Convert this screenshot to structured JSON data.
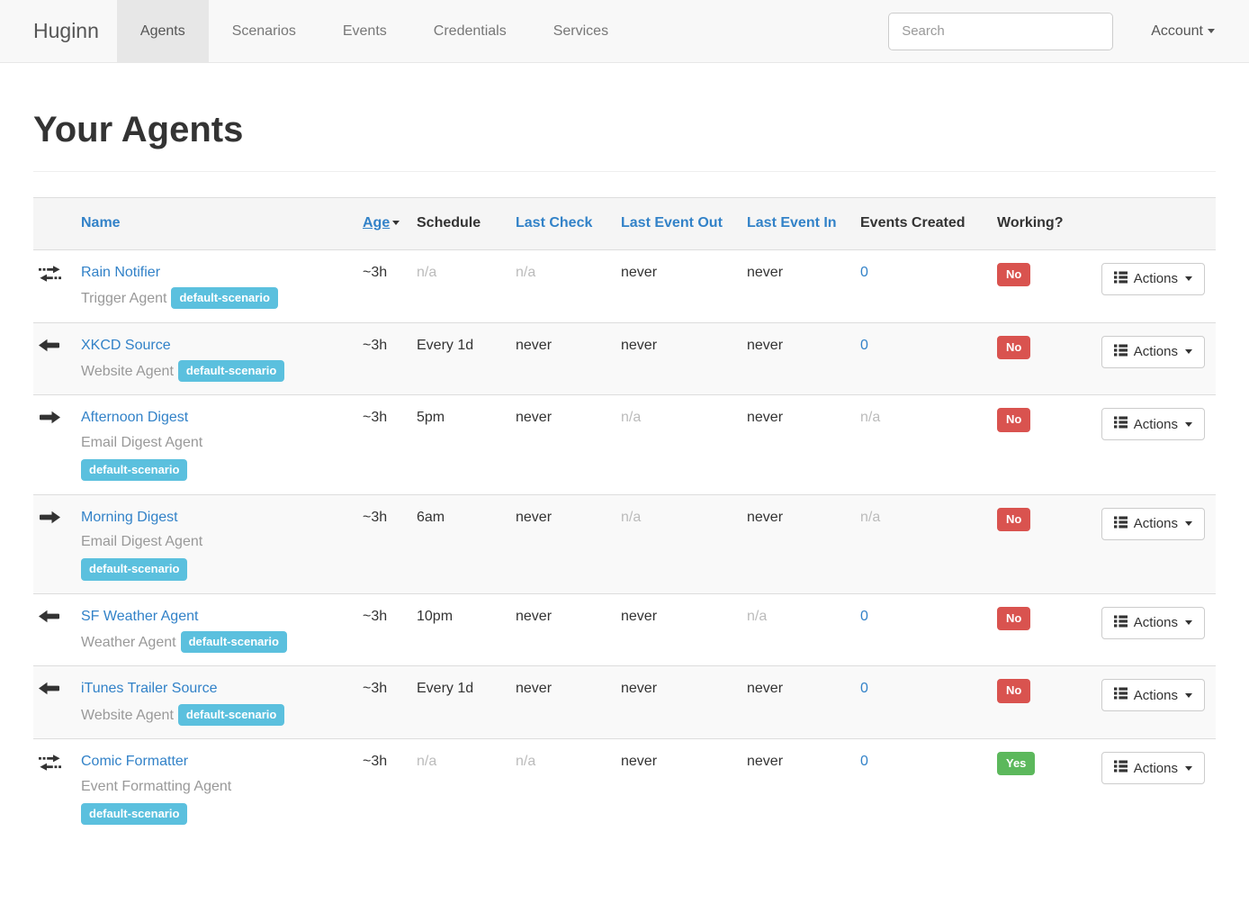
{
  "colors": {
    "link_blue": "#3282c8",
    "scenario_badge_bg": "#5bc0de",
    "working_no_bg": "#d9534f",
    "working_yes_bg": "#5cb85c",
    "navbar_bg": "#f8f8f8",
    "navbar_active_bg": "#e7e7e7",
    "row_stripe_bg": "#f9f9f9"
  },
  "navbar": {
    "brand": "Huginn",
    "items": [
      {
        "label": "Agents",
        "active": true
      },
      {
        "label": "Scenarios",
        "active": false
      },
      {
        "label": "Events",
        "active": false
      },
      {
        "label": "Credentials",
        "active": false
      },
      {
        "label": "Services",
        "active": false
      }
    ],
    "search": {
      "placeholder": "Search",
      "value": ""
    },
    "account": {
      "label": "Account"
    }
  },
  "page": {
    "title": "Your Agents"
  },
  "table": {
    "columns": [
      {
        "label": "Name",
        "link": true,
        "sorted": null
      },
      {
        "label": "Age",
        "link": true,
        "sorted": "desc"
      },
      {
        "label": "Schedule",
        "link": false,
        "sorted": null
      },
      {
        "label": "Last Check",
        "link": true,
        "sorted": null
      },
      {
        "label": "Last Event Out",
        "link": true,
        "sorted": null
      },
      {
        "label": "Last Event In",
        "link": true,
        "sorted": null
      },
      {
        "label": "Events Created",
        "link": false,
        "sorted": null
      },
      {
        "label": "Working?",
        "link": false,
        "sorted": null
      }
    ],
    "actions_label": "Actions",
    "rows": [
      {
        "icon": "transfer-icon",
        "name": "Rain Notifier",
        "type": "Trigger Agent",
        "badge": "default-scenario",
        "badge_wraps": false,
        "age": {
          "t": "~3h"
        },
        "schedule": {
          "t": "n/a",
          "muted": true
        },
        "last_check": {
          "t": "n/a",
          "muted": true
        },
        "last_event_out": {
          "t": "never"
        },
        "last_event_in": {
          "t": "never"
        },
        "events_created": {
          "t": "0",
          "link": true
        },
        "working": {
          "t": "No",
          "status": "danger"
        }
      },
      {
        "icon": "arrow-left-icon",
        "name": "XKCD Source",
        "type": "Website Agent",
        "badge": "default-scenario",
        "badge_wraps": false,
        "age": {
          "t": "~3h"
        },
        "schedule": {
          "t": "Every 1d"
        },
        "last_check": {
          "t": "never"
        },
        "last_event_out": {
          "t": "never"
        },
        "last_event_in": {
          "t": "never"
        },
        "events_created": {
          "t": "0",
          "link": true
        },
        "working": {
          "t": "No",
          "status": "danger"
        }
      },
      {
        "icon": "arrow-right-icon",
        "name": "Afternoon Digest",
        "type": "Email Digest Agent",
        "badge": "default-scenario",
        "badge_wraps": true,
        "age": {
          "t": "~3h"
        },
        "schedule": {
          "t": "5pm"
        },
        "last_check": {
          "t": "never"
        },
        "last_event_out": {
          "t": "n/a",
          "muted": true
        },
        "last_event_in": {
          "t": "never"
        },
        "events_created": {
          "t": "n/a",
          "muted": true
        },
        "working": {
          "t": "No",
          "status": "danger"
        }
      },
      {
        "icon": "arrow-right-icon",
        "name": "Morning Digest",
        "type": "Email Digest Agent",
        "badge": "default-scenario",
        "badge_wraps": true,
        "age": {
          "t": "~3h"
        },
        "schedule": {
          "t": "6am"
        },
        "last_check": {
          "t": "never"
        },
        "last_event_out": {
          "t": "n/a",
          "muted": true
        },
        "last_event_in": {
          "t": "never"
        },
        "events_created": {
          "t": "n/a",
          "muted": true
        },
        "working": {
          "t": "No",
          "status": "danger"
        }
      },
      {
        "icon": "arrow-left-icon",
        "name": "SF Weather Agent",
        "type": "Weather Agent",
        "badge": "default-scenario",
        "badge_wraps": false,
        "age": {
          "t": "~3h"
        },
        "schedule": {
          "t": "10pm"
        },
        "last_check": {
          "t": "never"
        },
        "last_event_out": {
          "t": "never"
        },
        "last_event_in": {
          "t": "n/a",
          "muted": true
        },
        "events_created": {
          "t": "0",
          "link": true
        },
        "working": {
          "t": "No",
          "status": "danger"
        }
      },
      {
        "icon": "arrow-left-icon",
        "name": "iTunes Trailer Source",
        "type": "Website Agent",
        "badge": "default-scenario",
        "badge_wraps": false,
        "age": {
          "t": "~3h"
        },
        "schedule": {
          "t": "Every 1d"
        },
        "last_check": {
          "t": "never"
        },
        "last_event_out": {
          "t": "never"
        },
        "last_event_in": {
          "t": "never"
        },
        "events_created": {
          "t": "0",
          "link": true
        },
        "working": {
          "t": "No",
          "status": "danger"
        }
      },
      {
        "icon": "transfer-icon",
        "name": "Comic Formatter",
        "type": "Event Formatting Agent",
        "badge": "default-scenario",
        "badge_wraps": true,
        "age": {
          "t": "~3h"
        },
        "schedule": {
          "t": "n/a",
          "muted": true
        },
        "last_check": {
          "t": "n/a",
          "muted": true
        },
        "last_event_out": {
          "t": "never"
        },
        "last_event_in": {
          "t": "never"
        },
        "events_created": {
          "t": "0",
          "link": true
        },
        "working": {
          "t": "Yes",
          "status": "success"
        }
      }
    ]
  }
}
